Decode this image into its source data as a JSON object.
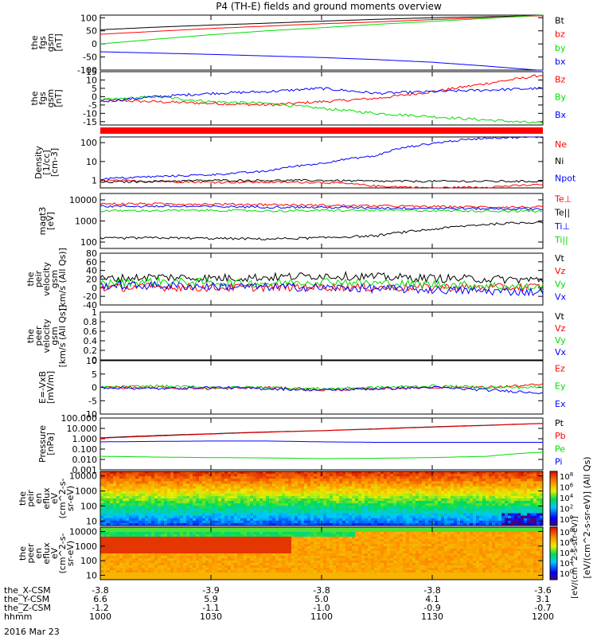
{
  "title": "P4 (TH-E) fields and ground moments overview",
  "date_label": "2016 Mar 23",
  "ephemeris_rows": [
    {
      "label": "the_X-CSM",
      "values": [
        "-3.8",
        "-3.9",
        "-3.8",
        "-3.8",
        "-3.6"
      ]
    },
    {
      "label": "the_Y-CSM",
      "values": [
        "6.6",
        "5.9",
        "5.0",
        "4.1",
        "3.1"
      ]
    },
    {
      "label": "the_Z-CSM",
      "values": [
        "-1.2",
        "-1.1",
        "-1.0",
        "-0.9",
        "-0.7"
      ]
    },
    {
      "label": "hhmm",
      "values": [
        "1000",
        "1030",
        "1100",
        "1130",
        "1200"
      ]
    }
  ],
  "colorbar": {
    "label": "[eV/(cm^2-s-sr-eV)] (All Qs)",
    "label_lower": "[eV/(cm^2-s-str-eV)]",
    "ticks": [
      "10^8",
      "10^6",
      "10^4",
      "10^2",
      "10^0"
    ],
    "ticks_lower": [
      "10^8",
      "10^6",
      "10^4",
      "10^2",
      "10^0"
    ]
  },
  "colors": {
    "black": "#000000",
    "red": "#ff0000",
    "green": "#00dd00",
    "blue": "#0000ff"
  },
  "chart_data": [
    {
      "type": "line",
      "ylabel": [
        "the",
        "fgs",
        "gsm",
        "[nT]"
      ],
      "ylim": [
        -100,
        110
      ],
      "ticks": [
        100,
        50,
        0,
        -50,
        -100
      ],
      "x": [
        1000,
        1015,
        1030,
        1045,
        1100,
        1115,
        1130,
        1145,
        1200
      ],
      "series": [
        {
          "name": "Bt",
          "color": "black",
          "values": [
            54,
            64,
            72,
            79,
            87,
            94,
            100,
            104,
            108
          ]
        },
        {
          "name": "bz",
          "color": "red",
          "values": [
            37,
            48,
            59,
            68,
            77,
            84,
            93,
            100,
            108
          ]
        },
        {
          "name": "by",
          "color": "green",
          "values": [
            0,
            18,
            35,
            50,
            62,
            75,
            86,
            98,
            110
          ]
        },
        {
          "name": "bx",
          "color": "blue",
          "values": [
            -30,
            -35,
            -40,
            -46,
            -52,
            -60,
            -70,
            -85,
            -102
          ]
        }
      ]
    },
    {
      "type": "line",
      "ylabel": [
        "the",
        "fgs",
        "gsm",
        "[nT]"
      ],
      "ylim": [
        -17,
        15
      ],
      "ticks": [
        15,
        10,
        5,
        0,
        -5,
        -10,
        -15
      ],
      "x": [
        1000,
        1015,
        1030,
        1045,
        1100,
        1115,
        1130,
        1145,
        1200
      ],
      "series": [
        {
          "name": "Bz",
          "color": "red",
          "values": [
            -2,
            -3,
            -4,
            -5,
            -3,
            -1,
            3,
            8,
            13
          ]
        },
        {
          "name": "By",
          "color": "green",
          "values": [
            -2,
            0,
            -3,
            -4,
            -7,
            -10,
            -12,
            -14,
            -16
          ]
        },
        {
          "name": "Bx",
          "color": "blue",
          "values": [
            -3,
            0,
            2,
            3,
            5,
            2,
            3,
            4,
            5
          ]
        }
      ]
    },
    {
      "type": "line",
      "ylabel": [
        "Density",
        "[1/cc]",
        "[cm-3]"
      ],
      "log": true,
      "ylim": [
        0.4,
        200
      ],
      "ticks": [
        100,
        10,
        1
      ],
      "x": [
        1000,
        1015,
        1030,
        1045,
        1100,
        1115,
        1130,
        1145,
        1200
      ],
      "series": [
        {
          "name": "Ne",
          "color": "red",
          "values": [
            1.0,
            0.9,
            0.8,
            0.8,
            0.8,
            0.5,
            0.4,
            0.45,
            0.6
          ]
        },
        {
          "name": "Ni",
          "color": "black",
          "values": [
            0.8,
            0.9,
            1.0,
            1.0,
            1.0,
            0.9,
            0.9,
            0.9,
            0.9
          ]
        },
        {
          "name": "Npot",
          "color": "blue",
          "values": [
            1.2,
            1.6,
            2.0,
            3.0,
            8.0,
            20,
            90,
            180,
            200
          ]
        }
      ]
    },
    {
      "type": "line",
      "ylabel": [
        "magt3",
        "[eV]"
      ],
      "log": true,
      "ylim": [
        50,
        20000
      ],
      "ticks": [
        10000,
        1000,
        100
      ],
      "x": [
        1000,
        1015,
        1030,
        1045,
        1100,
        1115,
        1130,
        1145,
        1200
      ],
      "series": [
        {
          "name": "Te⊥",
          "color": "red",
          "values": [
            6500,
            6500,
            6300,
            6000,
            5500,
            5200,
            4800,
            4600,
            4500
          ]
        },
        {
          "name": "Te||",
          "color": "black",
          "values": [
            150,
            160,
            150,
            140,
            160,
            200,
            400,
            700,
            900
          ]
        },
        {
          "name": "Ti⊥",
          "color": "blue",
          "values": [
            5000,
            5000,
            4800,
            4600,
            4400,
            4200,
            4000,
            3800,
            3700
          ]
        },
        {
          "name": "Ti||",
          "color": "green",
          "values": [
            3000,
            3100,
            3200,
            3000,
            3100,
            3200,
            3100,
            3000,
            2900
          ]
        }
      ]
    },
    {
      "type": "line",
      "ylabel": [
        "the",
        "peir",
        "velocity",
        "gsm",
        "[km/s (All Qs)]"
      ],
      "ylim": [
        -40,
        80
      ],
      "ticks": [
        80,
        60,
        40,
        20,
        0,
        -20,
        -40
      ],
      "x": [
        1000,
        1015,
        1030,
        1045,
        1100,
        1115,
        1130,
        1145,
        1200
      ],
      "series": [
        {
          "name": "Vt",
          "color": "black",
          "values": [
            20,
            25,
            22,
            24,
            28,
            25,
            22,
            20,
            18
          ]
        },
        {
          "name": "Vz",
          "color": "red",
          "values": [
            0,
            2,
            0,
            1,
            2,
            0,
            1,
            0,
            2
          ]
        },
        {
          "name": "Vy",
          "color": "green",
          "values": [
            10,
            15,
            12,
            10,
            15,
            10,
            8,
            5,
            0
          ]
        },
        {
          "name": "Vx",
          "color": "blue",
          "values": [
            5,
            5,
            3,
            2,
            0,
            -2,
            -5,
            -8,
            -10
          ]
        }
      ]
    },
    {
      "type": "line",
      "ylabel": [
        "the",
        "peer",
        "velocity",
        "gsm",
        "[km/s (All Qs)]"
      ],
      "ylim": [
        0,
        1
      ],
      "ticks": [
        1.0,
        0.8,
        0.6,
        0.4,
        0.2,
        0.0
      ],
      "x": [],
      "series": [
        {
          "name": "Vt",
          "color": "black",
          "values": []
        },
        {
          "name": "Vz",
          "color": "red",
          "values": []
        },
        {
          "name": "Vy",
          "color": "green",
          "values": []
        },
        {
          "name": "Vx",
          "color": "blue",
          "values": []
        }
      ]
    },
    {
      "type": "line",
      "ylabel": [
        "E=-VxB",
        "[mV/m]"
      ],
      "ylim": [
        -10,
        10
      ],
      "ticks": [
        10,
        5,
        0,
        -5,
        -10
      ],
      "x": [
        1000,
        1015,
        1030,
        1045,
        1100,
        1115,
        1130,
        1145,
        1200
      ],
      "series": [
        {
          "name": "Ez",
          "color": "red",
          "values": [
            0,
            0,
            -0.5,
            0,
            -1,
            -0.5,
            0,
            0,
            1
          ]
        },
        {
          "name": "Ey",
          "color": "green",
          "values": [
            0,
            0.5,
            0,
            0,
            -0.5,
            0,
            0.5,
            0,
            0
          ]
        },
        {
          "name": "Ex",
          "color": "blue",
          "values": [
            0,
            -0.5,
            0,
            -0.5,
            -1,
            -0.5,
            0,
            -1,
            -2
          ]
        }
      ]
    },
    {
      "type": "line",
      "ylabel": [
        "Pressure",
        "[nPa]"
      ],
      "log": true,
      "ylim": [
        0.001,
        100
      ],
      "ticks": [
        "100.000",
        "10.000",
        "1.000",
        "0.100",
        "0.010",
        "0.001"
      ],
      "tick_values": [
        100,
        10,
        1,
        0.1,
        0.01,
        0.001
      ],
      "x": [
        1000,
        1015,
        1030,
        1045,
        1100,
        1115,
        1130,
        1145,
        1200
      ],
      "series": [
        {
          "name": "Pt",
          "color": "black",
          "values": [
            1.2,
            2.0,
            3.0,
            4.5,
            6.0,
            9.0,
            14,
            20,
            30
          ]
        },
        {
          "name": "Pb",
          "color": "red",
          "values": [
            1.1,
            1.8,
            2.8,
            4.2,
            5.8,
            8.5,
            13,
            19,
            29
          ]
        },
        {
          "name": "Pe",
          "color": "green",
          "values": [
            0.02,
            0.017,
            0.015,
            0.014,
            0.012,
            0.013,
            0.015,
            0.02,
            0.05
          ]
        },
        {
          "name": "Pi",
          "color": "blue",
          "values": [
            0.5,
            0.55,
            0.6,
            0.6,
            0.5,
            0.45,
            0.45,
            0.45,
            0.45
          ]
        }
      ]
    },
    {
      "type": "heatmap",
      "ylabel": [
        "the",
        "peir",
        "en",
        "eflux",
        "eV",
        "(cm^2-s-",
        "sr-eV)"
      ],
      "log": true,
      "ylim": [
        5,
        20000
      ],
      "ticks": [
        10000,
        1000,
        100,
        10
      ]
    },
    {
      "type": "heatmap",
      "ylabel": [
        "the",
        "peer",
        "en",
        "eflux",
        "eV",
        "(cm^2-s-",
        "sr-eV)"
      ],
      "log": true,
      "ylim": [
        5,
        20000
      ],
      "ticks": [
        10000,
        1000,
        100,
        10
      ]
    }
  ]
}
